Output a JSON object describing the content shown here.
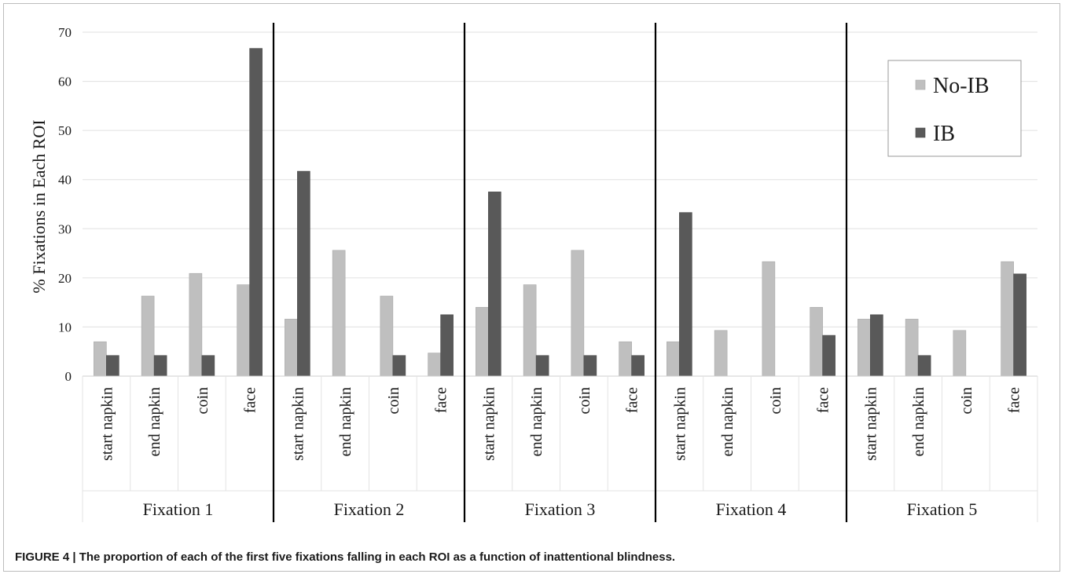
{
  "chart_data": {
    "type": "bar",
    "ylabel": "% Fixations in Each ROI",
    "ylim": [
      0,
      70
    ],
    "yticks": [
      0,
      10,
      20,
      30,
      40,
      50,
      60,
      70
    ],
    "grid": true,
    "legend_position": "top-right",
    "groups": [
      "Fixation 1",
      "Fixation 2",
      "Fixation 3",
      "Fixation 4",
      "Fixation 5"
    ],
    "categories": [
      "start napkin",
      "end napkin",
      "coin",
      "face"
    ],
    "series": [
      {
        "name": "No-IB",
        "color": "#bfbfbf",
        "values": [
          [
            7.0,
            16.3,
            20.9,
            18.6
          ],
          [
            11.6,
            25.6,
            16.3,
            4.7
          ],
          [
            14.0,
            18.6,
            25.6,
            7.0
          ],
          [
            7.0,
            9.3,
            23.3,
            14.0
          ],
          [
            11.6,
            11.6,
            9.3,
            23.3
          ]
        ]
      },
      {
        "name": "IB",
        "color": "#595959",
        "values": [
          [
            4.2,
            4.2,
            4.2,
            66.7
          ],
          [
            41.7,
            0,
            4.2,
            12.5
          ],
          [
            37.5,
            4.2,
            4.2,
            4.2
          ],
          [
            33.3,
            0,
            0,
            8.3
          ],
          [
            12.5,
            4.2,
            0,
            20.8
          ]
        ]
      }
    ]
  },
  "caption": "FIGURE 4 | The proportion of each of the first five fixations falling in each ROI as a function of inattentional blindness."
}
